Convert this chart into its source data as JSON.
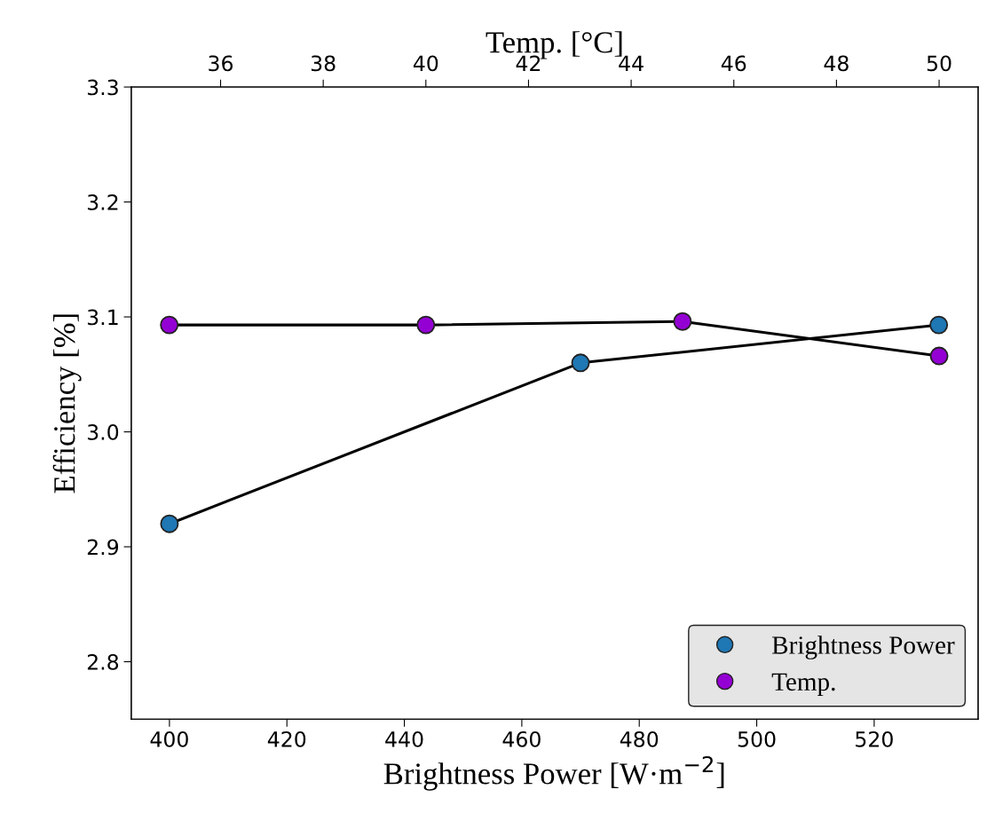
{
  "chart_data": {
    "type": "line",
    "xlabel": "Brightness Power [W·m$^{−2}$]",
    "x2label": "Temp. [°C]",
    "ylabel": "Efficiency [%]",
    "xlim": [
      393.5,
      537.7
    ],
    "xticks": [
      400,
      420,
      440,
      460,
      480,
      500,
      520
    ],
    "x2lim": [
      34.26,
      50.76
    ],
    "x2ticks": [
      36,
      38,
      40,
      42,
      44,
      46,
      48,
      50
    ],
    "ylim": [
      2.75,
      3.3
    ],
    "yticks": [
      2.8,
      2.9,
      {
        "value": 3.0,
        "label": "3.0"
      },
      3.1,
      3.2,
      3.3
    ],
    "marker": "circle",
    "line_style": "solid",
    "legend": "bottom right",
    "grid": false,
    "series": [
      {
        "name": "Brightness Power",
        "color": "#1f77b4",
        "x": [
          400,
          470,
          531
        ],
        "values": [
          2.92,
          3.06,
          3.093
        ]
      },
      {
        "name": "Temp.",
        "color": "#9400d3",
        "axis": "x2",
        "x": [
          35,
          40,
          45,
          50
        ],
        "values": [
          3.093,
          3.093,
          3.096,
          3.066
        ]
      }
    ]
  }
}
